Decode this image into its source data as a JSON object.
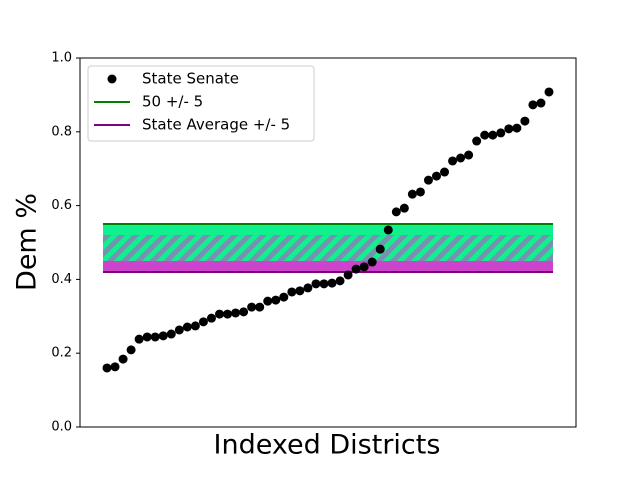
{
  "chart_data": {
    "type": "scatter",
    "xlabel": "Indexed Districts",
    "ylabel": "Dem %",
    "ylim": [
      0,
      1
    ],
    "yticks": [
      {
        "value": 0,
        "label": "0.0"
      },
      0.2,
      0.4,
      0.6,
      0.8,
      {
        "value": 1,
        "label": "1.0"
      }
    ],
    "legend": "upper left",
    "series": [
      {
        "name": "State Senate",
        "color": "black",
        "values": [
          0.16,
          0.163,
          0.184,
          0.209,
          0.238,
          0.244,
          0.244,
          0.247,
          0.252,
          0.263,
          0.271,
          0.274,
          0.285,
          0.295,
          0.306,
          0.306,
          0.309,
          0.312,
          0.325,
          0.325,
          0.341,
          0.344,
          0.352,
          0.366,
          0.369,
          0.377,
          0.388,
          0.388,
          0.39,
          0.396,
          0.412,
          0.428,
          0.434,
          0.447,
          0.482,
          0.534,
          0.583,
          0.593,
          0.631,
          0.637,
          0.669,
          0.68,
          0.691,
          0.721,
          0.729,
          0.737,
          0.775,
          0.791,
          0.791,
          0.797,
          0.808,
          0.81,
          0.829,
          0.873,
          0.878,
          0.908
        ]
      }
    ],
    "bands": [
      {
        "name": "50 +/- 5",
        "color": "green",
        "fill": "#11f08f",
        "range": [
          0.45,
          0.55
        ],
        "line": 1
      },
      {
        "name": "State Average +/- 5",
        "color": "purple",
        "fill": "#cc44cc",
        "range": [
          0.42,
          0.52
        ],
        "line": 0
      }
    ]
  }
}
